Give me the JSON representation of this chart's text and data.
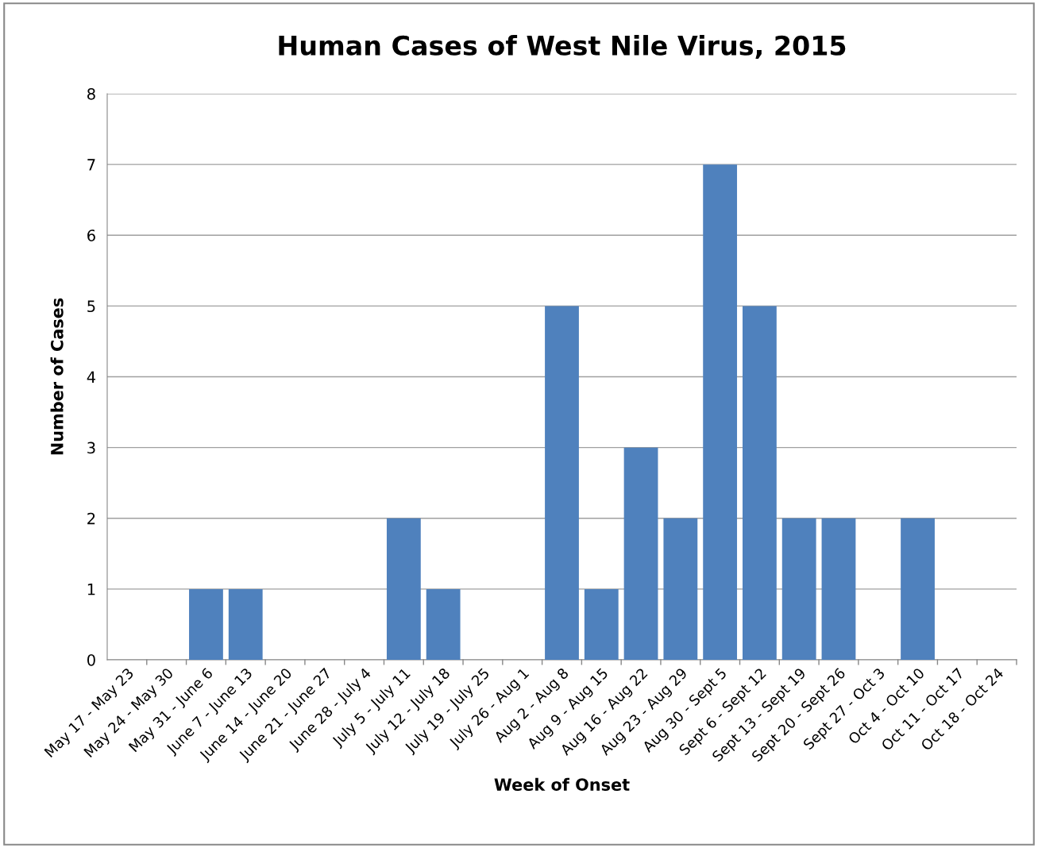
{
  "chart_data": {
    "type": "bar",
    "title": "Human Cases of West Nile Virus, 2015",
    "xlabel": "Week of Onset",
    "ylabel": "Number of Cases",
    "categories": [
      "May 17 - May 23",
      "May 24 - May 30",
      "May 31 - June 6",
      "June 7 - June 13",
      "June 14 - June 20",
      "June 21 - June 27",
      "June 28 - July 4",
      "July 5 - July 11",
      "July 12 - July 18",
      "July 19 - July 25",
      "July 26 - Aug 1",
      "Aug 2 - Aug 8",
      "Aug 9 - Aug 15",
      "Aug 16 - Aug 22",
      "Aug 23 - Aug 29",
      "Aug 30 - Sept 5",
      "Sept 6 - Sept 12",
      "Sept 13 - Sept 19",
      "Sept 20 - Sept 26",
      "Sept 27 - Oct 3",
      "Oct 4 - Oct 10",
      "Oct 11 - Oct 17",
      "Oct 18 - Oct 24"
    ],
    "values": [
      0,
      0,
      1,
      1,
      0,
      0,
      0,
      2,
      1,
      0,
      0,
      5,
      1,
      3,
      2,
      7,
      5,
      2,
      2,
      0,
      2,
      0,
      0
    ],
    "color": "#4f81bd",
    "ylim": [
      0,
      8
    ],
    "yticks": [
      0,
      1,
      2,
      3,
      4,
      5,
      6,
      7,
      8
    ],
    "grid": "y",
    "legend": false
  }
}
